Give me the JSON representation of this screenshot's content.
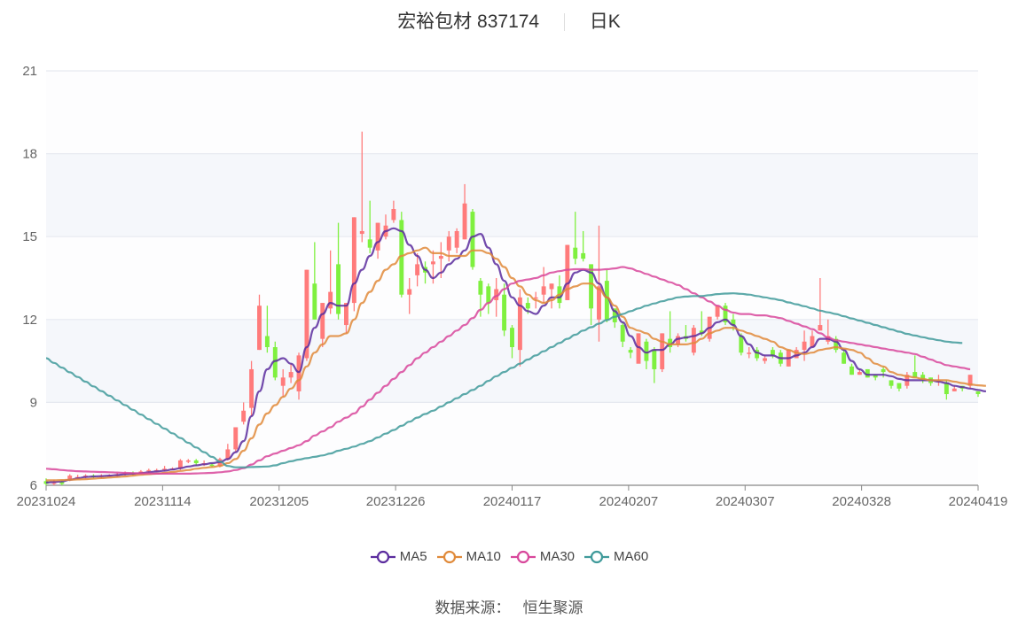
{
  "header": {
    "stock_name": "宏裕包材",
    "stock_code": "837174",
    "period": "日K"
  },
  "footer": {
    "source_label": "数据来源：",
    "source_name": "恒生聚源"
  },
  "colors": {
    "up": "#ff7b7b",
    "down": "#7ff03f",
    "MA5": "#5b2c9e",
    "MA10": "#e08a3a",
    "MA30": "#d8479b",
    "MA60": "#3f9a9a",
    "grid": "#e6e9f0",
    "band": "#f5f7fb"
  },
  "chart_data": {
    "type": "candlestick",
    "title": "宏裕包材 837174 日K",
    "xlabel": "",
    "ylabel": "",
    "ylim": [
      6,
      21
    ],
    "yticks": [
      6,
      9,
      12,
      15,
      18,
      21
    ],
    "xticks": [
      "20231024",
      "20231114",
      "20231205",
      "20231226",
      "20240117",
      "20240207",
      "20240307",
      "20240328",
      "20240419"
    ],
    "legend": [
      "MA5",
      "MA10",
      "MA30",
      "MA60"
    ],
    "legend_position": "bottom",
    "grid": true,
    "ohlc": [
      [
        6.15,
        6.05,
        6.25,
        6.0
      ],
      [
        6.1,
        6.1,
        6.2,
        6.0
      ],
      [
        6.12,
        6.05,
        6.18,
        6.0
      ],
      [
        6.2,
        6.35,
        6.4,
        6.15
      ],
      [
        6.3,
        6.3,
        6.38,
        6.25
      ],
      [
        6.3,
        6.35,
        6.4,
        6.25
      ],
      [
        6.35,
        6.3,
        6.4,
        6.25
      ],
      [
        6.3,
        6.35,
        6.4,
        6.25
      ],
      [
        6.35,
        6.35,
        6.4,
        6.3
      ],
      [
        6.35,
        6.4,
        6.45,
        6.3
      ],
      [
        6.4,
        6.45,
        6.5,
        6.35
      ],
      [
        6.45,
        6.4,
        6.5,
        6.35
      ],
      [
        6.45,
        6.5,
        6.55,
        6.4
      ],
      [
        6.5,
        6.55,
        6.6,
        6.45
      ],
      [
        6.55,
        6.55,
        6.6,
        6.5
      ],
      [
        6.55,
        6.6,
        6.7,
        6.5
      ],
      [
        6.6,
        6.6,
        6.65,
        6.55
      ],
      [
        6.6,
        6.9,
        6.95,
        6.55
      ],
      [
        6.85,
        6.9,
        6.95,
        6.8
      ],
      [
        6.9,
        6.8,
        6.95,
        6.7
      ],
      [
        6.8,
        6.8,
        6.9,
        6.7
      ],
      [
        6.75,
        6.7,
        6.8,
        6.65
      ],
      [
        6.7,
        6.95,
        7.0,
        6.65
      ],
      [
        6.95,
        7.3,
        7.5,
        6.9
      ],
      [
        7.3,
        8.1,
        8.1,
        7.2
      ],
      [
        8.3,
        8.7,
        9.0,
        8.2
      ],
      [
        8.8,
        10.2,
        10.5,
        8.5
      ],
      [
        10.9,
        12.5,
        12.9,
        10.9
      ],
      [
        11.4,
        11.0,
        12.5,
        10.8
      ],
      [
        11.0,
        9.9,
        11.2,
        9.8
      ],
      [
        9.6,
        9.9,
        10.2,
        9.2
      ],
      [
        9.9,
        10.1,
        10.4,
        9.7
      ],
      [
        9.4,
        10.7,
        10.8,
        9.1
      ],
      [
        10.6,
        13.8,
        13.8,
        10.5
      ],
      [
        13.3,
        12.0,
        14.8,
        12.0
      ],
      [
        11.3,
        12.6,
        12.6,
        11.0
      ],
      [
        12.4,
        13.0,
        14.5,
        12.2
      ],
      [
        14.0,
        12.2,
        15.5,
        12.0
      ],
      [
        11.8,
        12.6,
        12.6,
        11.5
      ],
      [
        12.6,
        15.7,
        15.7,
        12.3
      ],
      [
        15.1,
        15.2,
        18.8,
        14.8
      ],
      [
        14.9,
        14.6,
        16.3,
        14.4
      ],
      [
        14.5,
        15.5,
        15.5,
        14.2
      ],
      [
        15.0,
        15.4,
        15.8,
        14.9
      ],
      [
        15.6,
        16.0,
        16.3,
        15.5
      ],
      [
        15.6,
        12.9,
        15.9,
        12.8
      ],
      [
        12.9,
        13.1,
        13.5,
        12.2
      ],
      [
        13.6,
        14.0,
        14.4,
        13.2
      ],
      [
        13.9,
        13.7,
        14.1,
        13.3
      ],
      [
        14.0,
        14.1,
        14.5,
        13.3
      ],
      [
        14.2,
        14.3,
        14.8,
        13.5
      ],
      [
        14.5,
        15.0,
        15.2,
        14.1
      ],
      [
        14.6,
        15.2,
        15.3,
        14.4
      ],
      [
        14.9,
        16.2,
        16.9,
        14.9
      ],
      [
        15.9,
        13.9,
        16.0,
        13.8
      ],
      [
        13.4,
        12.9,
        13.5,
        12.1
      ],
      [
        13.2,
        12.6,
        13.3,
        12.2
      ],
      [
        12.7,
        13.1,
        13.5,
        12.1
      ],
      [
        12.9,
        11.6,
        13.3,
        11.4
      ],
      [
        11.7,
        11.0,
        11.8,
        10.6
      ],
      [
        10.9,
        12.8,
        13.1,
        10.3
      ],
      [
        12.6,
        12.4,
        12.8,
        12.2
      ],
      [
        12.8,
        12.8,
        13.0,
        12.4
      ],
      [
        12.9,
        13.2,
        13.9,
        12.6
      ],
      [
        13.1,
        13.3,
        13.3,
        12.4
      ],
      [
        13.2,
        12.6,
        13.6,
        12.4
      ],
      [
        12.7,
        14.7,
        14.7,
        12.7
      ],
      [
        14.6,
        14.2,
        15.9,
        14.0
      ],
      [
        14.4,
        14.2,
        15.2,
        14.1
      ],
      [
        14.0,
        12.4,
        14.0,
        11.8
      ],
      [
        12.0,
        13.2,
        15.4,
        11.2
      ],
      [
        13.4,
        12.0,
        13.8,
        11.9
      ],
      [
        12.4,
        11.9,
        12.4,
        11.7
      ],
      [
        11.8,
        11.2,
        11.9,
        11.0
      ],
      [
        10.9,
        10.8,
        11.0,
        10.6
      ],
      [
        10.4,
        11.5,
        11.5,
        10.6
      ],
      [
        11.2,
        10.5,
        11.3,
        10.2
      ],
      [
        10.9,
        10.2,
        11.0,
        9.7
      ],
      [
        10.2,
        11.5,
        11.5,
        10.1
      ],
      [
        11.3,
        11.0,
        12.3,
        10.8
      ],
      [
        11.1,
        11.4,
        11.5,
        11.0
      ],
      [
        11.4,
        11.3,
        11.8,
        11.2
      ],
      [
        10.8,
        11.7,
        11.8,
        10.7
      ],
      [
        11.6,
        11.5,
        12.3,
        11.4
      ],
      [
        11.3,
        12.1,
        12.1,
        11.2
      ],
      [
        12.1,
        12.5,
        12.5,
        12.0
      ],
      [
        12.5,
        11.9,
        12.6,
        11.8
      ],
      [
        12.0,
        11.8,
        12.2,
        11.6
      ],
      [
        11.4,
        10.8,
        11.5,
        10.7
      ],
      [
        10.8,
        10.8,
        11.0,
        10.6
      ],
      [
        10.9,
        10.6,
        11.0,
        10.5
      ],
      [
        10.5,
        10.6,
        10.7,
        10.4
      ],
      [
        10.9,
        10.7,
        11.0,
        10.6
      ],
      [
        10.8,
        10.4,
        10.9,
        10.3
      ],
      [
        10.3,
        10.9,
        10.9,
        10.3
      ],
      [
        10.6,
        10.9,
        11.0,
        10.6
      ],
      [
        10.9,
        11.2,
        11.6,
        10.5
      ],
      [
        11.0,
        11.4,
        11.6,
        11.2
      ],
      [
        11.6,
        11.8,
        13.5,
        11.6
      ],
      [
        11.2,
        11.4,
        12.0,
        11.1
      ],
      [
        11.3,
        10.9,
        11.4,
        10.8
      ],
      [
        10.8,
        10.4,
        10.9,
        10.4
      ],
      [
        10.3,
        10.0,
        10.4,
        10.0
      ],
      [
        10.0,
        10.1,
        10.2,
        10.0
      ],
      [
        10.2,
        9.9,
        10.2,
        9.9
      ],
      [
        10.0,
        9.9,
        10.0,
        9.8
      ],
      [
        10.2,
        10.1,
        10.3,
        9.9
      ],
      [
        9.8,
        9.6,
        9.8,
        9.5
      ],
      [
        9.7,
        9.5,
        9.7,
        9.4
      ],
      [
        9.6,
        10.0,
        10.1,
        9.5
      ],
      [
        10.1,
        9.9,
        10.7,
        9.9
      ],
      [
        10.0,
        9.8,
        10.1,
        9.7
      ],
      [
        9.9,
        9.7,
        9.9,
        9.6
      ],
      [
        9.8,
        9.8,
        10.0,
        9.6
      ],
      [
        9.7,
        9.3,
        9.8,
        9.1
      ],
      [
        9.4,
        9.5,
        9.6,
        9.4
      ],
      [
        9.6,
        9.5,
        9.6,
        9.4
      ],
      [
        9.6,
        10.0,
        10.0,
        9.5
      ],
      [
        9.4,
        9.3,
        9.4,
        9.2
      ]
    ],
    "series": [
      {
        "name": "MA5",
        "values": [
          6.1,
          6.12,
          6.14,
          6.2,
          6.25,
          6.3,
          6.32,
          6.33,
          6.35,
          6.37,
          6.4,
          6.42,
          6.44,
          6.47,
          6.5,
          6.53,
          6.57,
          6.62,
          6.68,
          6.72,
          6.76,
          6.8,
          6.84,
          6.95,
          7.2,
          7.6,
          8.5,
          9.4,
          10.2,
          10.5,
          10.6,
          10.4,
          10.1,
          11.0,
          11.7,
          12.2,
          12.6,
          12.5,
          12.5,
          13.3,
          13.8,
          14.3,
          14.8,
          15.2,
          15.3,
          15.2,
          14.7,
          14.3,
          13.8,
          13.5,
          13.7,
          14.0,
          14.2,
          14.5,
          15.0,
          15.1,
          14.6,
          14.0,
          13.4,
          12.8,
          12.5,
          12.3,
          12.2,
          12.5,
          12.8,
          12.8,
          13.3,
          13.7,
          13.8,
          13.7,
          13.3,
          12.8,
          12.3,
          11.9,
          11.4,
          11.0,
          10.8,
          10.9,
          10.9,
          11.1,
          11.3,
          11.35,
          11.4,
          11.5,
          11.7,
          11.9,
          12.0,
          11.8,
          11.4,
          11.1,
          10.8,
          10.7,
          10.7,
          10.6,
          10.6,
          10.7,
          10.8,
          11.0,
          11.3,
          11.3,
          11.2,
          10.9,
          10.5,
          10.2,
          10.0,
          10.0,
          10.0,
          9.95,
          9.85,
          9.8,
          9.8,
          9.8,
          9.8,
          9.75,
          9.7,
          9.6,
          9.55,
          9.5,
          9.45,
          9.4
        ]
      },
      {
        "name": "MA10",
        "values": [
          6.18,
          6.18,
          6.19,
          6.2,
          6.21,
          6.22,
          6.24,
          6.26,
          6.28,
          6.3,
          6.32,
          6.35,
          6.38,
          6.4,
          6.42,
          6.45,
          6.48,
          6.52,
          6.55,
          6.6,
          6.63,
          6.66,
          6.7,
          6.8,
          6.95,
          7.25,
          7.7,
          8.2,
          8.6,
          8.9,
          9.2,
          9.5,
          9.8,
          10.3,
          10.8,
          11.1,
          11.4,
          11.4,
          11.5,
          12.0,
          12.6,
          13.0,
          13.4,
          13.8,
          14.0,
          14.3,
          14.4,
          14.5,
          14.6,
          14.4,
          14.4,
          14.3,
          14.3,
          14.3,
          14.5,
          14.5,
          14.4,
          14.2,
          13.9,
          13.5,
          13.2,
          12.9,
          12.7,
          12.6,
          12.7,
          12.9,
          13.1,
          13.2,
          13.3,
          13.3,
          13.1,
          12.8,
          12.5,
          12.1,
          11.7,
          11.6,
          11.5,
          11.3,
          11.2,
          11.1,
          11.1,
          11.1,
          11.15,
          11.3,
          11.5,
          11.6,
          11.7,
          11.7,
          11.6,
          11.5,
          11.4,
          11.3,
          11.2,
          11.0,
          10.9,
          10.8,
          10.75,
          10.8,
          10.9,
          10.95,
          11.0,
          10.95,
          10.9,
          10.8,
          10.6,
          10.4,
          10.3,
          10.1,
          10.0,
          9.95,
          9.9,
          9.85,
          9.8,
          9.8,
          9.8,
          9.75,
          9.7,
          9.65,
          9.62,
          9.6
        ]
      },
      {
        "name": "MA30",
        "values": [
          6.6,
          6.58,
          6.55,
          6.53,
          6.51,
          6.5,
          6.49,
          6.48,
          6.47,
          6.46,
          6.45,
          6.44,
          6.43,
          6.43,
          6.42,
          6.42,
          6.42,
          6.42,
          6.42,
          6.43,
          6.44,
          6.45,
          6.47,
          6.5,
          6.55,
          6.62,
          6.75,
          6.9,
          7.05,
          7.15,
          7.25,
          7.35,
          7.45,
          7.6,
          7.8,
          7.95,
          8.1,
          8.3,
          8.45,
          8.6,
          8.85,
          9.1,
          9.35,
          9.6,
          9.85,
          10.1,
          10.35,
          10.6,
          10.8,
          11.0,
          11.2,
          11.4,
          11.6,
          11.8,
          12.05,
          12.35,
          12.6,
          12.85,
          13.1,
          13.3,
          13.4,
          13.45,
          13.5,
          13.6,
          13.7,
          13.75,
          13.8,
          13.82,
          13.82,
          13.8,
          13.8,
          13.82,
          13.85,
          13.9,
          13.85,
          13.75,
          13.65,
          13.55,
          13.45,
          13.35,
          13.25,
          13.1,
          12.95,
          12.8,
          12.65,
          12.5,
          12.35,
          12.25,
          12.2,
          12.2,
          12.15,
          12.15,
          12.1,
          12.05,
          11.95,
          11.85,
          11.75,
          11.65,
          11.5,
          11.35,
          11.25,
          11.2,
          11.15,
          11.1,
          11.05,
          11.0,
          10.95,
          10.9,
          10.85,
          10.8,
          10.75,
          10.65,
          10.55,
          10.45,
          10.35,
          10.3,
          10.25,
          10.2
        ]
      },
      {
        "name": "MA60",
        "values": [
          10.6,
          10.43,
          10.26,
          10.09,
          9.92,
          9.75,
          9.58,
          9.41,
          9.24,
          9.07,
          8.9,
          8.73,
          8.56,
          8.39,
          8.22,
          8.05,
          7.88,
          7.71,
          7.54,
          7.37,
          7.2,
          7.03,
          6.86,
          6.7,
          6.65,
          6.65,
          6.66,
          6.67,
          6.68,
          6.72,
          6.8,
          6.87,
          6.93,
          6.98,
          7.03,
          7.08,
          7.15,
          7.25,
          7.32,
          7.4,
          7.5,
          7.6,
          7.73,
          7.87,
          8.0,
          8.15,
          8.3,
          8.45,
          8.58,
          8.7,
          8.85,
          9.0,
          9.15,
          9.3,
          9.45,
          9.6,
          9.78,
          9.95,
          10.1,
          10.25,
          10.4,
          10.55,
          10.7,
          10.85,
          11.0,
          11.15,
          11.3,
          11.45,
          11.6,
          11.72,
          11.85,
          11.98,
          12.1,
          12.2,
          12.3,
          12.4,
          12.5,
          12.58,
          12.66,
          12.73,
          12.8,
          12.83,
          12.85,
          12.85,
          12.88,
          12.92,
          12.94,
          12.95,
          12.93,
          12.9,
          12.85,
          12.8,
          12.75,
          12.7,
          12.62,
          12.55,
          12.48,
          12.4,
          12.32,
          12.26,
          12.2,
          12.12,
          12.04,
          11.96,
          11.88,
          11.8,
          11.72,
          11.64,
          11.56,
          11.48,
          11.42,
          11.36,
          11.3,
          11.25,
          11.2,
          11.17,
          11.15
        ]
      }
    ]
  }
}
